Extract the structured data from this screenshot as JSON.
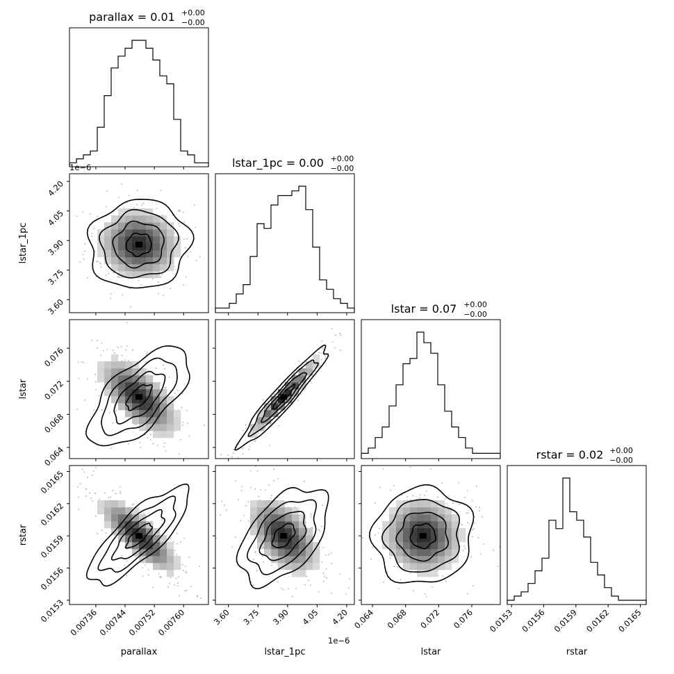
{
  "chart_data": {
    "type": "corner",
    "parameters": [
      "parallax",
      "lstar_1pc",
      "lstar",
      "rstar"
    ],
    "axis_labels": [
      "parallax",
      "lstar_1pc",
      "lstar",
      "rstar"
    ],
    "titles": [
      {
        "text": "parallax = 0.01",
        "sup": "+0.00",
        "sub": "−0.00"
      },
      {
        "text": "lstar_1pc = 0.00",
        "sup": "+0.00",
        "sub": "−0.00"
      },
      {
        "text": "lstar = 0.07",
        "sup": "+0.00",
        "sub": "−0.00"
      },
      {
        "text": "rstar = 0.02",
        "sup": "+0.00",
        "sub": "−0.00"
      }
    ],
    "offset_labels": {
      "lstar_1pc": "1e−6"
    },
    "ranges": {
      "parallax": [
        0.007288,
        0.007668
      ],
      "lstar_1pc": [
        3.534,
        4.239
      ],
      "lstar": [
        0.06265,
        0.07945
      ],
      "rstar": [
        0.01526,
        0.016555
      ]
    },
    "ticks": {
      "parallax": {
        "values": [
          0.00736,
          0.00744,
          0.00752,
          0.0076
        ],
        "labels": [
          "0.00736",
          "0.00744",
          "0.00752",
          "0.00760"
        ]
      },
      "lstar_1pc": {
        "values": [
          3.6,
          3.75,
          3.9,
          4.05,
          4.2
        ],
        "labels": [
          "3.60",
          "3.75",
          "3.90",
          "4.05",
          "4.20"
        ]
      },
      "lstar": {
        "values": [
          0.064,
          0.068,
          0.072,
          0.076
        ],
        "labels": [
          "0.064",
          "0.068",
          "0.072",
          "0.076"
        ]
      },
      "rstar": {
        "values": [
          0.0153,
          0.0156,
          0.0159,
          0.0162,
          0.0165
        ],
        "labels": [
          "0.0153",
          "0.0156",
          "0.0159",
          "0.0162",
          "0.0165"
        ]
      }
    },
    "histograms": {
      "parallax": [
        1,
        2,
        3,
        4,
        10,
        18,
        25,
        28,
        30,
        32,
        32,
        30,
        27,
        23,
        21,
        12,
        4,
        3,
        1,
        1
      ],
      "lstar_1pc": [
        1,
        1,
        2,
        4,
        6,
        12,
        19,
        18,
        23,
        25,
        25,
        26,
        27,
        22,
        14,
        7,
        5,
        3,
        2,
        1
      ],
      "lstar": [
        1,
        2,
        4,
        6,
        10,
        14,
        18,
        19,
        24,
        22,
        20,
        14,
        9,
        6,
        4,
        2,
        1,
        1,
        1,
        1
      ],
      "rstar": [
        1,
        2,
        3,
        5,
        8,
        11,
        20,
        18,
        30,
        22,
        20,
        16,
        10,
        7,
        4,
        2,
        1,
        1,
        1,
        1
      ]
    },
    "pairs": [
      {
        "x": "parallax",
        "y": "lstar_1pc",
        "mean": [
          0.007478,
          3.88
        ],
        "sd": [
          5.5e-05,
          0.09
        ],
        "rho": -0.05
      },
      {
        "x": "parallax",
        "y": "lstar",
        "mean": [
          0.007478,
          0.0701
        ],
        "sd": [
          5.5e-05,
          0.0024
        ],
        "rho": -0.65
      },
      {
        "x": "lstar_1pc",
        "y": "lstar",
        "mean": [
          3.88,
          0.0701
        ],
        "sd": [
          0.09,
          0.0024
        ],
        "rho": 0.95
      },
      {
        "x": "parallax",
        "y": "rstar",
        "mean": [
          0.007478,
          0.0159
        ],
        "sd": [
          5.5e-05,
          0.00018
        ],
        "rho": -0.8
      },
      {
        "x": "lstar_1pc",
        "y": "rstar",
        "mean": [
          3.88,
          0.0159
        ],
        "sd": [
          0.09,
          0.00018
        ],
        "rho": -0.5
      },
      {
        "x": "lstar",
        "y": "rstar",
        "mean": [
          0.0701,
          0.0159
        ],
        "sd": [
          0.0024,
          0.00018
        ],
        "rho": -0.05
      }
    ],
    "contour_levels_sigma": [
      0.5,
      1.0,
      1.5,
      2.0
    ],
    "grid": false,
    "legend": "none"
  }
}
